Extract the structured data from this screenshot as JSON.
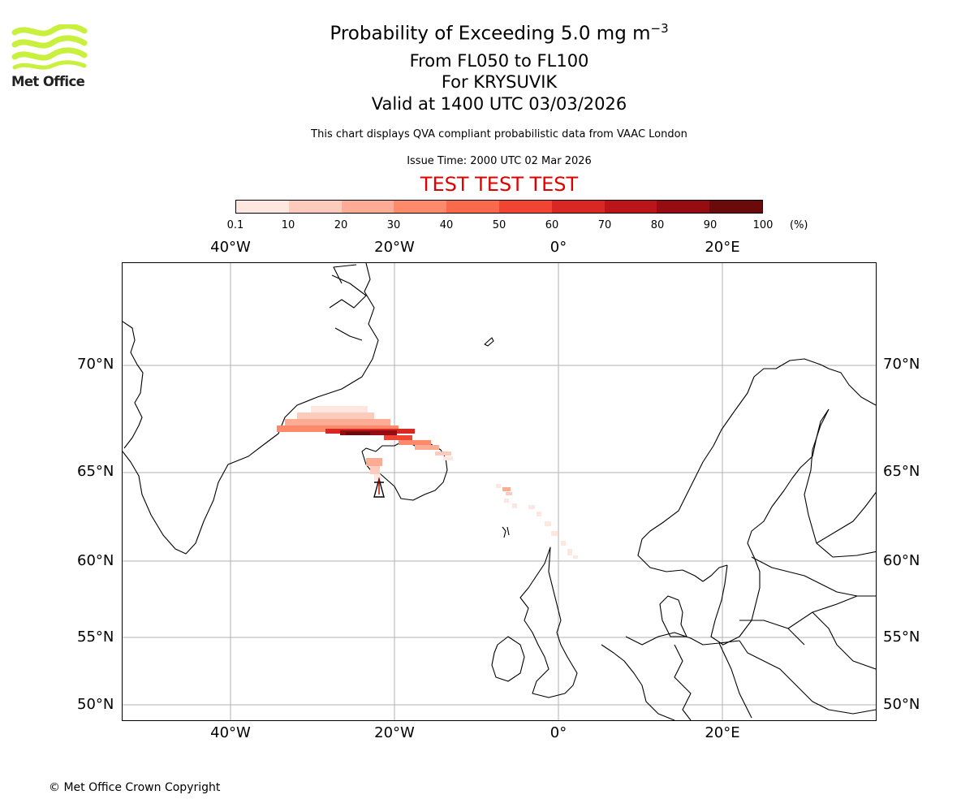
{
  "logo": {
    "text": "Met Office",
    "icon": "met-office-waves-logo",
    "color": "#c8f03c"
  },
  "header": {
    "title": "Probability of Exceeding 5.0 mg m",
    "title_sup": "−3",
    "line1": "From FL050 to FL100",
    "line2": "For KRYSUVIK",
    "line3": "Valid at 1400 UTC 03/03/2026",
    "description": "This chart displays QVA compliant probabilistic data from VAAC London",
    "issue_time": "Issue Time: 2000 UTC 02 Mar 2026",
    "test_banner": "TEST TEST TEST",
    "test_color": "#e00000"
  },
  "colorbar": {
    "ticks": [
      "0.1",
      "10",
      "20",
      "30",
      "40",
      "50",
      "60",
      "70",
      "80",
      "90",
      "100"
    ],
    "unit": "(%)",
    "colors": [
      "#fee7df",
      "#fdcbbb",
      "#fcac95",
      "#fc8a6b",
      "#f9694c",
      "#f14432",
      "#d92723",
      "#bb1419",
      "#950c12",
      "#6b0a0b"
    ]
  },
  "map": {
    "lon_labels_top": [
      "40°W",
      "20°W",
      "0°",
      "20°E"
    ],
    "lon_labels_bottom": [
      "40°W",
      "20°W",
      "0°",
      "20°E"
    ],
    "lat_labels_left": [
      "70°N",
      "65°N",
      "60°N",
      "55°N",
      "50°N"
    ],
    "lat_labels_right": [
      "70°N",
      "65°N",
      "60°N",
      "55°N",
      "50°N"
    ],
    "source_volcano": "KRYSUVIK"
  },
  "footer": {
    "copyright": "© Met Office Crown Copyright"
  }
}
